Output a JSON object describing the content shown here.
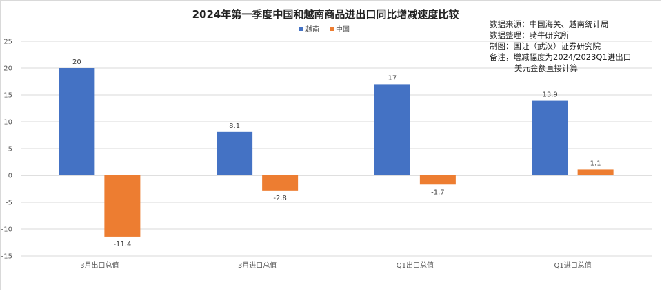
{
  "chart_data": {
    "type": "bar",
    "title": "2024年第一季度中国和越南商品进出口同比增减速度比较",
    "categories": [
      "3月出口总值",
      "3月进口总值",
      "Q1出口总值",
      "Q1进口总值"
    ],
    "series": [
      {
        "name": "越南",
        "values": [
          20,
          8.1,
          17,
          13.9
        ],
        "color": "#4472C4"
      },
      {
        "name": "中国",
        "values": [
          -11.4,
          -2.8,
          -1.7,
          1.1
        ],
        "color": "#ED7D31"
      }
    ],
    "ylim": [
      -15,
      25
    ],
    "yticks": [
      "25",
      "20",
      "15",
      "10",
      "5",
      "0",
      "-5",
      "-10",
      "-15"
    ],
    "grid": true,
    "legend_position": "top-center"
  },
  "notes": [
    "数据来源：中国海关、越南统计局",
    "数据整理：骑牛研究所",
    "制图：国证（武汉）证券研究院",
    "备注，增减幅度为2024/2023Q1进出口",
    "美元金额直接计算"
  ]
}
